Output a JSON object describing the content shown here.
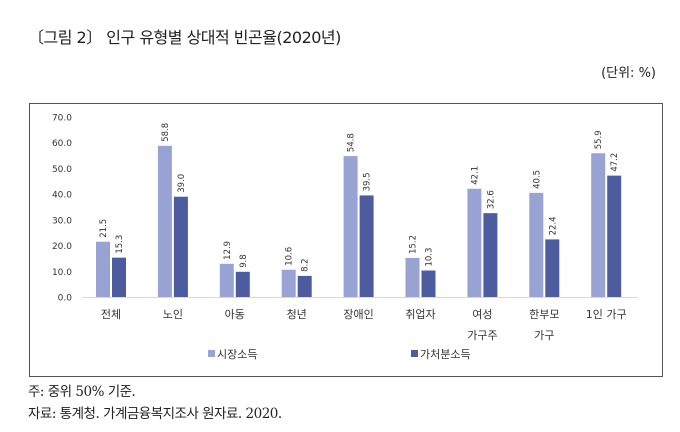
{
  "title": "〔그림 2〕 인구 유형별 상대적 빈곤율(2020년)",
  "unit": "(단위: %)",
  "notes": [
    "주: 중위 50% 기준.",
    "자료: 통계청. 가계금융복지조사 원자료. 2020."
  ],
  "colors": {
    "market": "#98a3d3",
    "disposable": "#4c5c9e",
    "grid": "#d9d9d9"
  },
  "chart_data": {
    "type": "bar",
    "title": "인구 유형별 상대적 빈곤율(2020년)",
    "xlabel": "",
    "ylabel": "%",
    "ylim": [
      0,
      70
    ],
    "yticks": [
      "0.0",
      "10.0",
      "20.0",
      "30.0",
      "40.0",
      "50.0",
      "60.0",
      "70.0"
    ],
    "categories": [
      [
        "전체"
      ],
      [
        "노인"
      ],
      [
        "아동"
      ],
      [
        "청년"
      ],
      [
        "장애인"
      ],
      [
        "취업자"
      ],
      [
        "여성",
        "가구주"
      ],
      [
        "한부모",
        "가구"
      ],
      [
        "1인 가구"
      ]
    ],
    "series": [
      {
        "name": "시장소득",
        "values": [
          21.5,
          58.8,
          12.9,
          10.6,
          54.8,
          15.2,
          42.1,
          40.5,
          55.9
        ],
        "labels": [
          "21.5",
          "58.8",
          "12.9",
          "10.6",
          "54.8",
          "15.2",
          "42.1",
          "40.5",
          "55.9"
        ]
      },
      {
        "name": "가처분소득",
        "values": [
          15.3,
          39.0,
          9.8,
          8.2,
          39.5,
          10.3,
          32.6,
          22.4,
          47.2
        ],
        "labels": [
          "15.3",
          "39.0",
          "9.8",
          "8.2",
          "39.5",
          "10.3",
          "32.6",
          "22.4",
          "47.2"
        ]
      }
    ],
    "legend": "bottom",
    "grid": false
  }
}
